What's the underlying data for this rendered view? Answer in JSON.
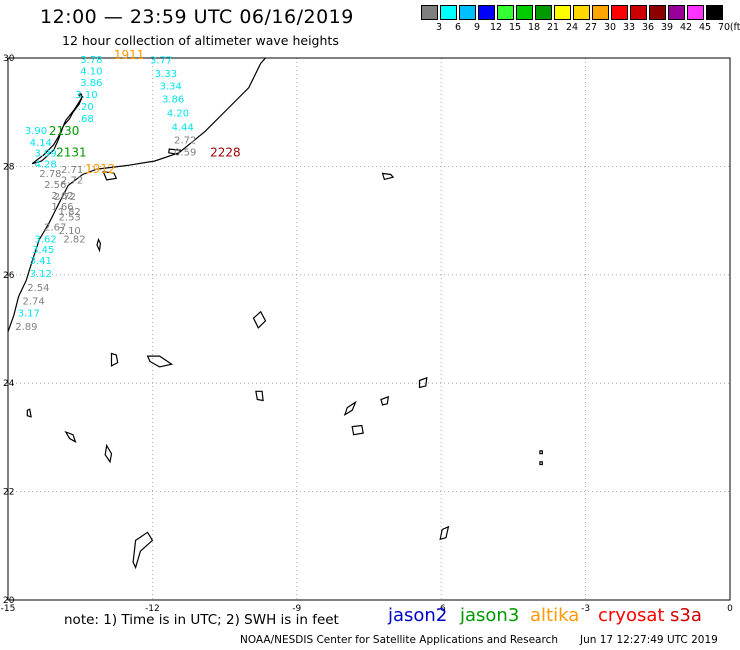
{
  "title": "12:00 — 23:59 UTC 06/16/2019",
  "subtitle": "12 hour collection of altimeter wave heights",
  "colorbar": {
    "unit": "(ft)",
    "ticks": [
      "3",
      "6",
      "9",
      "12",
      "15",
      "18",
      "21",
      "24",
      "27",
      "30",
      "33",
      "36",
      "39",
      "42",
      "45",
      "70"
    ],
    "colors": [
      "#7f7f7f",
      "#00ffff",
      "#00bfff",
      "#0000ff",
      "#33ff33",
      "#00cc00",
      "#009900",
      "#ffff00",
      "#ffd700",
      "#ffa500",
      "#ff0000",
      "#cc0000",
      "#8b0000",
      "#990099",
      "#ff33ff",
      "#000000"
    ]
  },
  "axes": {
    "lon_ticks": [
      "-15",
      "-12",
      "-9",
      "-6",
      "-3",
      "0"
    ],
    "lat_ticks": [
      "30",
      "28",
      "26",
      "24",
      "22",
      "20"
    ]
  },
  "swh_labels": [
    {
      "text": "3.78",
      "color": "#00e5ee",
      "lon": -13.5,
      "lat": 29.91
    },
    {
      "text": "4.10",
      "color": "#00e5ee",
      "lon": -13.5,
      "lat": 29.7
    },
    {
      "text": "3.86",
      "color": "#00e5ee",
      "lon": -13.5,
      "lat": 29.48
    },
    {
      "text": "3.10",
      "color": "#00e5ee",
      "lon": -13.6,
      "lat": 29.26
    },
    {
      "text": ".20",
      "color": "#00e5ee",
      "lon": -13.55,
      "lat": 29.04
    },
    {
      "text": ".68",
      "color": "#00e5ee",
      "lon": -13.55,
      "lat": 28.82
    },
    {
      "text": "3.90",
      "color": "#00e5ee",
      "lon": -14.65,
      "lat": 28.6
    },
    {
      "text": "4.14",
      "color": "#00e5ee",
      "lon": -14.55,
      "lat": 28.38
    },
    {
      "text": "3.99",
      "color": "#00e5ee",
      "lon": -14.45,
      "lat": 28.18
    },
    {
      "text": "4.28",
      "color": "#00e5ee",
      "lon": -14.45,
      "lat": 27.98
    },
    {
      "text": "2.71",
      "color": "#808080",
      "lon": -13.9,
      "lat": 27.88
    },
    {
      "text": "2.78",
      "color": "#808080",
      "lon": -14.35,
      "lat": 27.8
    },
    {
      "text": "2.72",
      "color": "#808080",
      "lon": -13.9,
      "lat": 27.68
    },
    {
      "text": "2.56",
      "color": "#808080",
      "lon": -14.25,
      "lat": 27.6
    },
    {
      "text": "2.62",
      "color": "#808080",
      "lon": -14.1,
      "lat": 27.4
    },
    {
      "text": "2.72",
      "color": "#808080",
      "lon": -14.05,
      "lat": 27.38
    },
    {
      "text": "1.66",
      "color": "#808080",
      "lon": -14.1,
      "lat": 27.2
    },
    {
      "text": "1.82",
      "color": "#808080",
      "lon": -13.95,
      "lat": 27.1
    },
    {
      "text": "2.53",
      "color": "#808080",
      "lon": -13.95,
      "lat": 27.0
    },
    {
      "text": "2.67",
      "color": "#808080",
      "lon": -14.25,
      "lat": 26.82
    },
    {
      "text": "2.10",
      "color": "#808080",
      "lon": -13.95,
      "lat": 26.75
    },
    {
      "text": "3.62",
      "color": "#00e5ee",
      "lon": -14.45,
      "lat": 26.6
    },
    {
      "text": "2.82",
      "color": "#808080",
      "lon": -13.85,
      "lat": 26.6
    },
    {
      "text": "3.45",
      "color": "#00e5ee",
      "lon": -14.5,
      "lat": 26.4
    },
    {
      "text": "3.41",
      "color": "#00e5ee",
      "lon": -14.55,
      "lat": 26.2
    },
    {
      "text": "3.12",
      "color": "#00e5ee",
      "lon": -14.55,
      "lat": 25.96
    },
    {
      "text": "2.54",
      "color": "#808080",
      "lon": -14.6,
      "lat": 25.7
    },
    {
      "text": "2.74",
      "color": "#808080",
      "lon": -14.7,
      "lat": 25.45
    },
    {
      "text": "3.17",
      "color": "#00e5ee",
      "lon": -14.8,
      "lat": 25.23
    },
    {
      "text": "2.89",
      "color": "#808080",
      "lon": -14.85,
      "lat": 24.98
    },
    {
      "text": "3.77",
      "color": "#00e5ee",
      "lon": -12.05,
      "lat": 29.9
    },
    {
      "text": "3.33",
      "color": "#00e5ee",
      "lon": -11.95,
      "lat": 29.65
    },
    {
      "text": "3.34",
      "color": "#00e5ee",
      "lon": -11.85,
      "lat": 29.42
    },
    {
      "text": "3.86",
      "color": "#00e5ee",
      "lon": -11.8,
      "lat": 29.18
    },
    {
      "text": "4.20",
      "color": "#00e5ee",
      "lon": -11.7,
      "lat": 28.92
    },
    {
      "text": "4.44",
      "color": "#00e5ee",
      "lon": -11.6,
      "lat": 28.66
    },
    {
      "text": "2.72",
      "color": "#808080",
      "lon": -11.55,
      "lat": 28.42
    },
    {
      "text": "0.59",
      "color": "#808080",
      "lon": -11.55,
      "lat": 28.2
    }
  ],
  "pass_times": [
    {
      "text": "1911",
      "color": "#ff9900",
      "lon": -12.8,
      "lat": 29.98
    },
    {
      "text": "2130",
      "color": "#009900",
      "lon": -14.15,
      "lat": 28.58
    },
    {
      "text": "2131",
      "color": "#009900",
      "lon": -14.0,
      "lat": 28.18
    },
    {
      "text": "1912",
      "color": "#ff9900",
      "lon": -13.4,
      "lat": 27.88
    },
    {
      "text": "2228",
      "color": "#990000",
      "lon": -10.8,
      "lat": 28.18
    }
  ],
  "note": "note:  1) Time is in UTC;  2) SWH is in feet",
  "legend": [
    {
      "name": "jason2",
      "color": "#0000cc"
    },
    {
      "name": "jason3",
      "color": "#009900"
    },
    {
      "name": "altika",
      "color": "#ff9900"
    },
    {
      "name": "cryosat",
      "color": "#ff0000"
    },
    {
      "name": "s3a",
      "color": "#cc0000"
    }
  ],
  "credit": "NOAA/NESDIS Center for Satellite Applications and Research",
  "timestamp": "Jun 17 12:27:49 UTC 2019"
}
